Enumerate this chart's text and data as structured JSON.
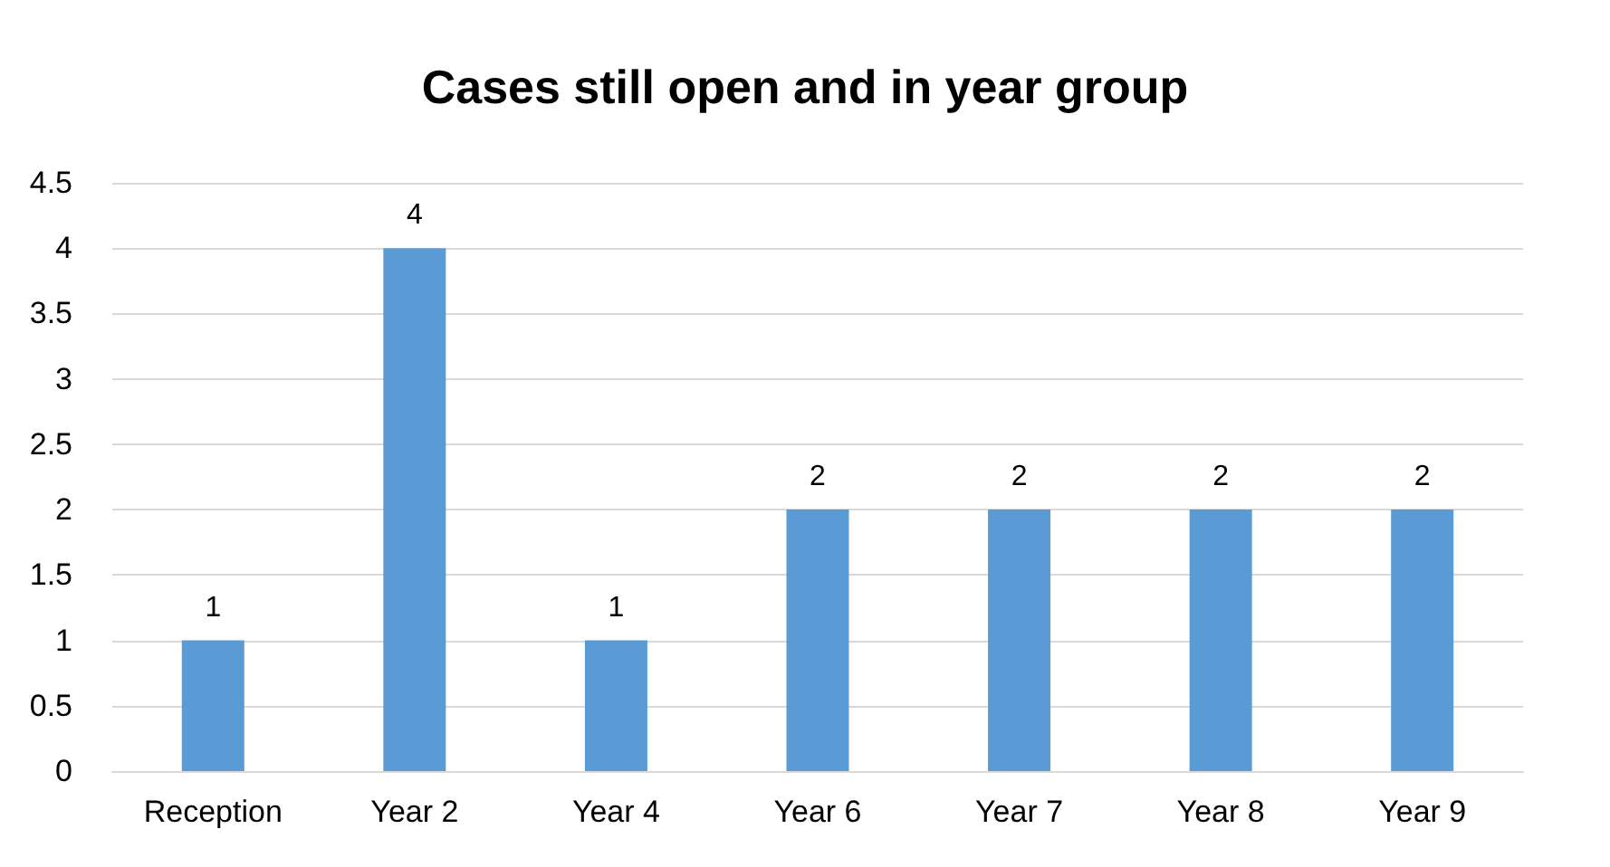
{
  "chart_data": {
    "type": "bar",
    "title": "Cases still open and in year group",
    "categories": [
      "Reception",
      "Year 2",
      "Year 4",
      "Year 6",
      "Year 7",
      "Year 8",
      "Year 9"
    ],
    "values": [
      1,
      4,
      1,
      2,
      2,
      2,
      2
    ],
    "color": "#5b9bd5",
    "ylim": [
      0,
      4.5
    ],
    "yticks": [
      0,
      0.5,
      1,
      1.5,
      2,
      2.5,
      3,
      3.5,
      4,
      4.5
    ],
    "grid": true,
    "data_labels": true
  }
}
